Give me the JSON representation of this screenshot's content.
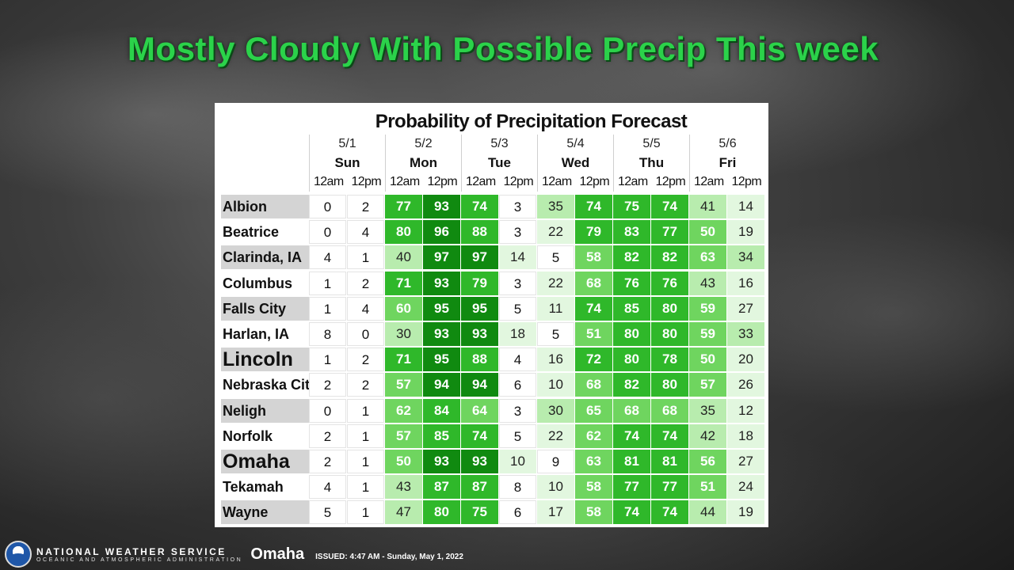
{
  "headline": "Mostly Cloudy With Possible Precip This week",
  "table_title": "Probability of Precipitation Forecast",
  "period_labels": [
    "12am",
    "12pm"
  ],
  "days": [
    {
      "date": "5/1",
      "name": "Sun"
    },
    {
      "date": "5/2",
      "name": "Mon"
    },
    {
      "date": "5/3",
      "name": "Tue"
    },
    {
      "date": "5/4",
      "name": "Wed"
    },
    {
      "date": "5/5",
      "name": "Thu"
    },
    {
      "date": "5/6",
      "name": "Fri"
    }
  ],
  "rows": [
    {
      "city": "Albion",
      "values": [
        0,
        2,
        77,
        93,
        74,
        3,
        35,
        74,
        75,
        74,
        41,
        14
      ]
    },
    {
      "city": "Beatrice",
      "values": [
        0,
        4,
        80,
        96,
        88,
        3,
        22,
        79,
        83,
        77,
        50,
        19
      ]
    },
    {
      "city": "Clarinda, IA",
      "values": [
        4,
        1,
        40,
        97,
        97,
        14,
        5,
        58,
        82,
        82,
        63,
        34
      ]
    },
    {
      "city": "Columbus",
      "values": [
        1,
        2,
        71,
        93,
        79,
        3,
        22,
        68,
        76,
        76,
        43,
        16
      ]
    },
    {
      "city": "Falls City",
      "values": [
        1,
        4,
        60,
        95,
        95,
        5,
        11,
        74,
        85,
        80,
        59,
        27
      ]
    },
    {
      "city": "Harlan, IA",
      "values": [
        8,
        0,
        30,
        93,
        93,
        18,
        5,
        51,
        80,
        80,
        59,
        33
      ]
    },
    {
      "city": "Lincoln",
      "values": [
        1,
        2,
        71,
        95,
        88,
        4,
        16,
        72,
        80,
        78,
        50,
        20
      ]
    },
    {
      "city": "Nebraska City",
      "values": [
        2,
        2,
        57,
        94,
        94,
        6,
        10,
        68,
        82,
        80,
        57,
        26
      ]
    },
    {
      "city": "Neligh",
      "values": [
        0,
        1,
        62,
        84,
        64,
        3,
        30,
        65,
        68,
        68,
        35,
        12
      ]
    },
    {
      "city": "Norfolk",
      "values": [
        2,
        1,
        57,
        85,
        74,
        5,
        22,
        62,
        74,
        74,
        42,
        18
      ]
    },
    {
      "city": "Omaha",
      "values": [
        2,
        1,
        50,
        93,
        93,
        10,
        9,
        63,
        81,
        81,
        56,
        27
      ]
    },
    {
      "city": "Tekamah",
      "values": [
        4,
        1,
        43,
        87,
        87,
        8,
        10,
        58,
        77,
        77,
        51,
        24
      ]
    },
    {
      "city": "Wayne",
      "values": [
        5,
        1,
        47,
        80,
        75,
        6,
        17,
        58,
        74,
        74,
        44,
        19
      ]
    }
  ],
  "footer": {
    "agency": "NATIONAL WEATHER SERVICE",
    "parent": "OCEANIC AND ATMOSPHERIC ADMINISTRATION",
    "office": "Omaha",
    "issued": "ISSUED: 4:47 AM - Sunday, May 1, 2022"
  },
  "colors": {
    "headline": "#2bd24a",
    "pop_light": "#e2f7df",
    "pop_mid": "#6fd55f",
    "pop_dark": "#108a10"
  }
}
